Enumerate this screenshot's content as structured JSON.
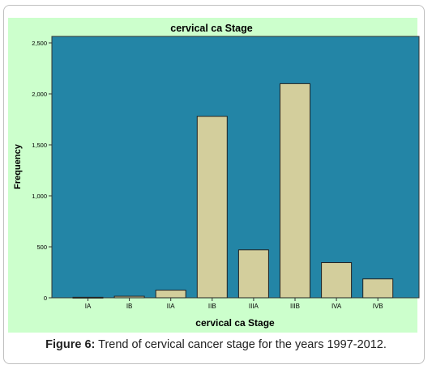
{
  "caption": {
    "label": "Figure 6:",
    "text": " Trend of cervical cancer stage for the years 1997-2012."
  },
  "colors": {
    "panel_background": "#ccffcc",
    "plot_background": "#2385a6",
    "bar_fill": "#d3ce9c",
    "bar_stroke": "#222222"
  },
  "chart_data": {
    "type": "bar",
    "title": "cervical ca Stage",
    "xlabel": "cervical ca Stage",
    "ylabel": "Frequency",
    "categories": [
      "IA",
      "IB",
      "IIA",
      "IIB",
      "IIIA",
      "IIIB",
      "IVA",
      "IVB"
    ],
    "values": [
      5,
      15,
      75,
      1780,
      470,
      2100,
      345,
      185
    ],
    "ylim": [
      0,
      2500
    ],
    "yticks": [
      0,
      500,
      1000,
      1500,
      2000,
      2500
    ],
    "ytick_labels": [
      "0",
      "500",
      "1,000",
      "1,500",
      "2,000",
      "2,500"
    ],
    "grid": false,
    "legend": "none"
  }
}
